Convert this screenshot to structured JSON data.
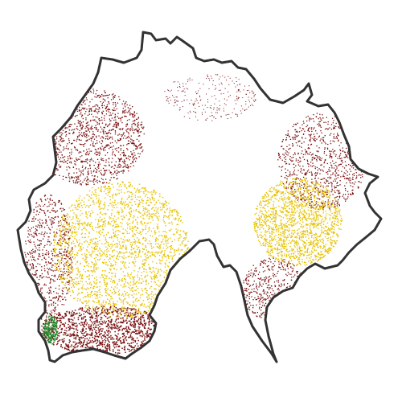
{
  "map": {
    "colors": {
      "background": "#ffffff",
      "boundary": "#333333",
      "dense_red": "#7a0f0f",
      "yellow": "#e6c200",
      "green": "#1f8a2a"
    }
  }
}
